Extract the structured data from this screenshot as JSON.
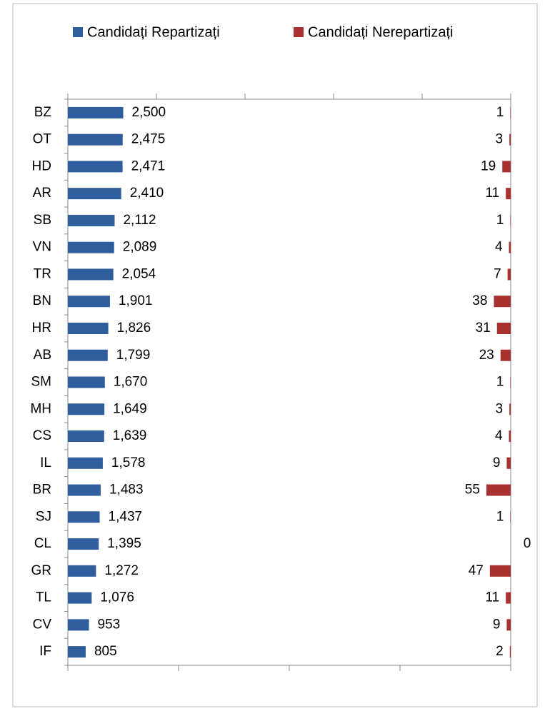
{
  "chart_data": {
    "type": "bar_horizontal_dual",
    "categories": [
      "BZ",
      "OT",
      "HD",
      "AR",
      "SB",
      "VN",
      "TR",
      "BN",
      "HR",
      "AB",
      "SM",
      "MH",
      "CS",
      "IL",
      "BR",
      "SJ",
      "CL",
      "GR",
      "TL",
      "CV",
      "IF"
    ],
    "series": [
      {
        "name": "Candidați Repartizați",
        "color": "#2e5e9e",
        "axis": "x",
        "values": [
          2500,
          2475,
          2471,
          2410,
          2112,
          2089,
          2054,
          1901,
          1826,
          1799,
          1670,
          1649,
          1639,
          1578,
          1483,
          1437,
          1395,
          1272,
          1076,
          953,
          805
        ],
        "value_labels": [
          "2,500",
          "2,475",
          "2,471",
          "2,410",
          "2,112",
          "2,089",
          "2,054",
          "1,901",
          "1,826",
          "1,799",
          "1,670",
          "1,649",
          "1,639",
          "1,578",
          "1,483",
          "1,437",
          "1,395",
          "1,272",
          "1,076",
          "953",
          "805"
        ]
      },
      {
        "name": "Candidați Nerepartizați",
        "color": "#a8302e",
        "axis": "x2",
        "values": [
          1,
          3,
          19,
          11,
          1,
          4,
          7,
          38,
          31,
          23,
          1,
          3,
          4,
          9,
          55,
          1,
          0,
          47,
          11,
          9,
          2
        ]
      }
    ],
    "xlim": [
      0,
      20000
    ],
    "xticks": [
      0,
      4000,
      8000,
      12000,
      16000,
      20000
    ],
    "x2lim": [
      0,
      1000
    ],
    "x2ticks": [
      0,
      250,
      500,
      750,
      1000
    ],
    "x2_reversed": true,
    "legend": "top"
  }
}
